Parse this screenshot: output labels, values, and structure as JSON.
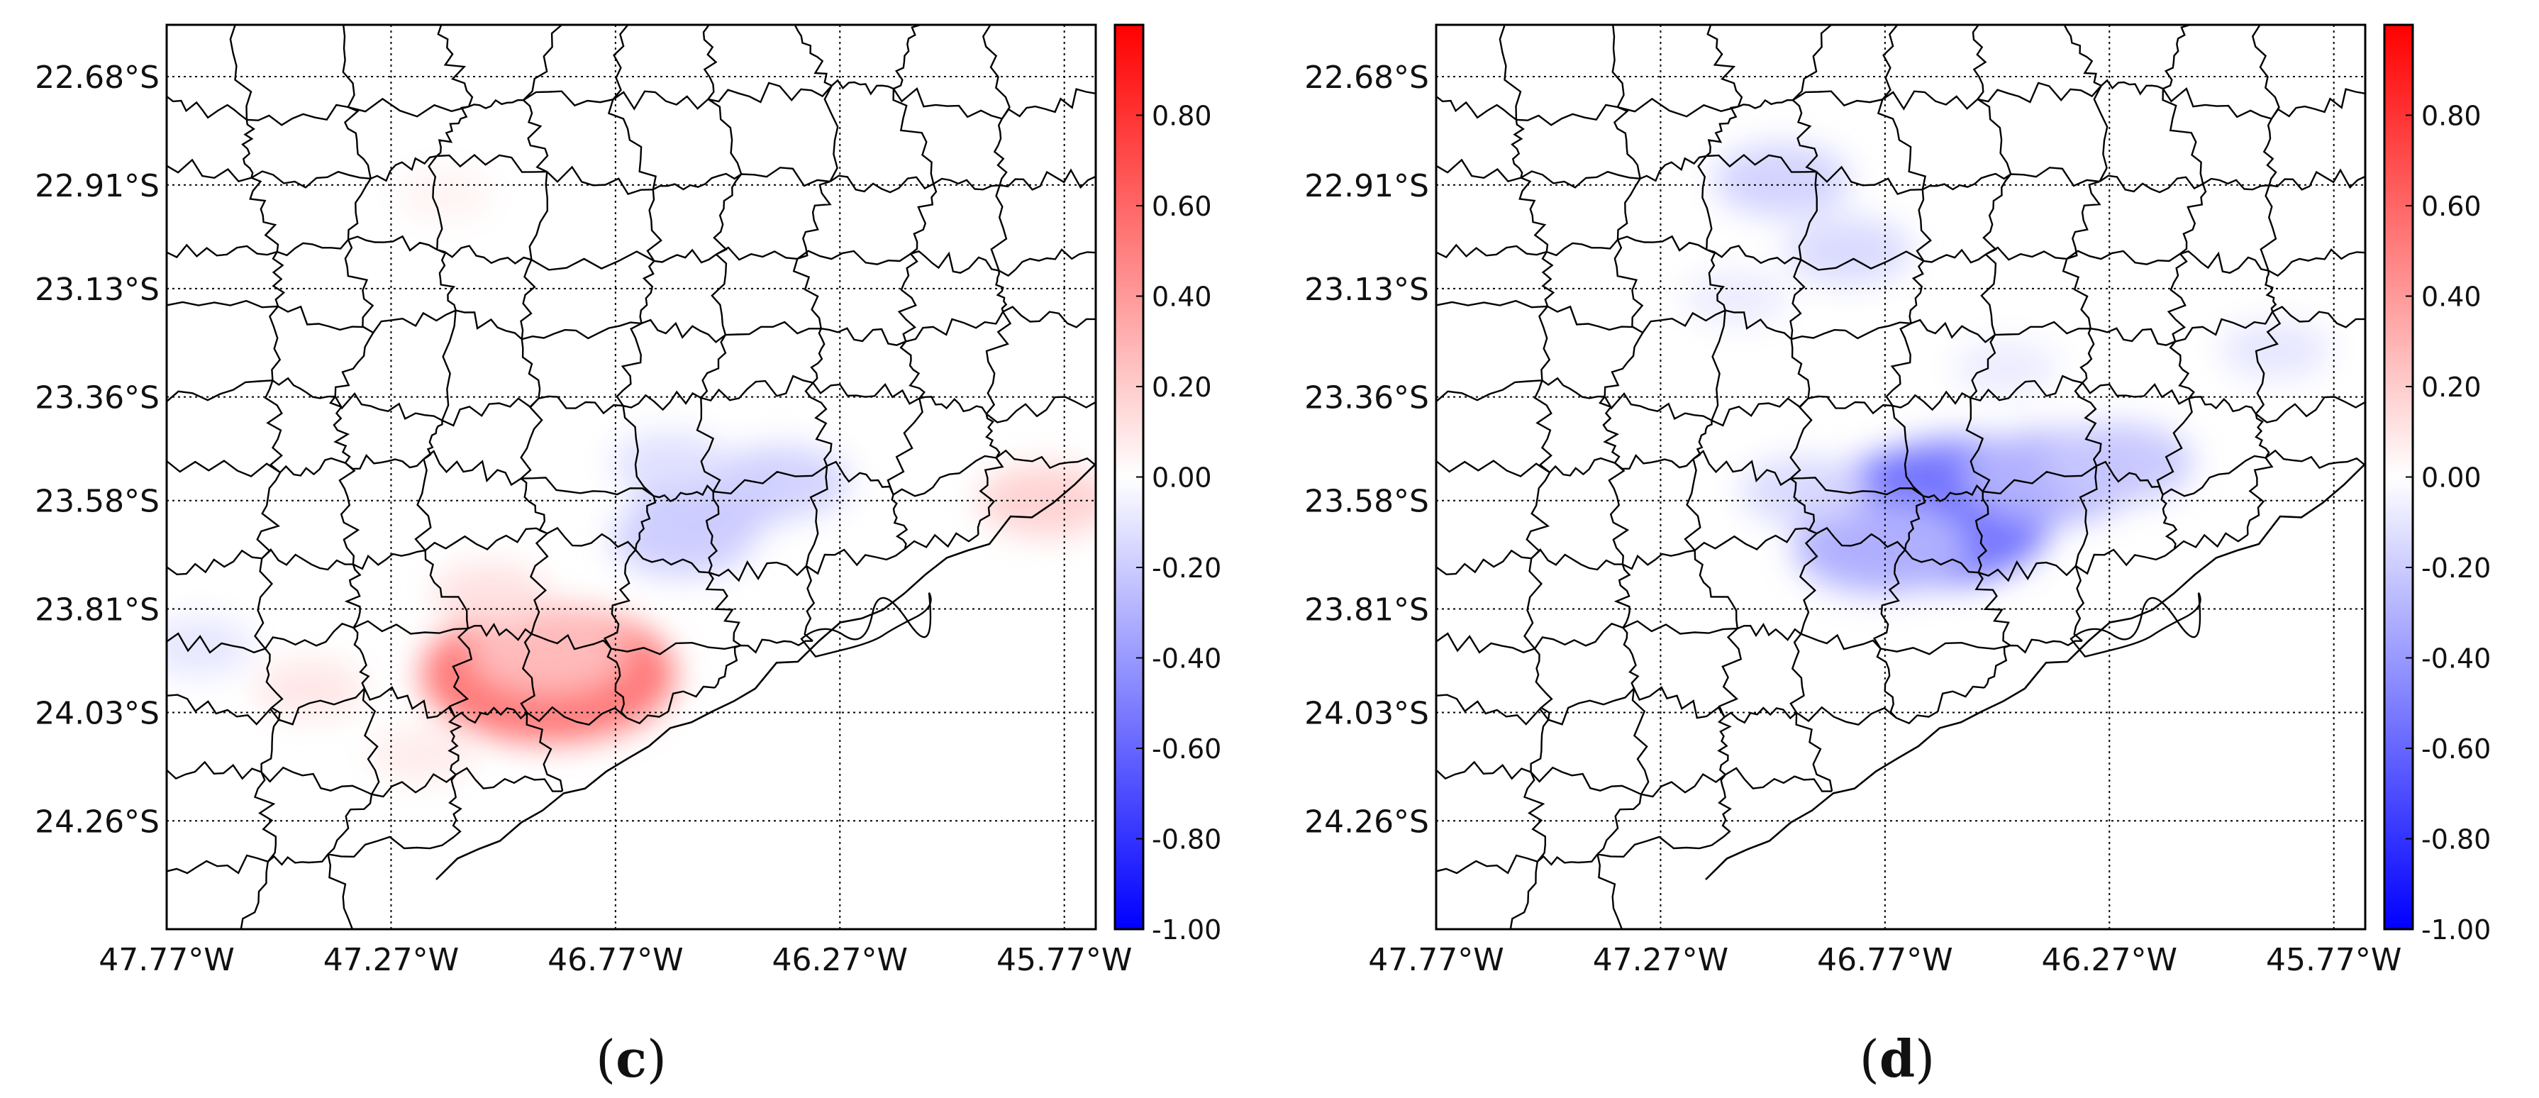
{
  "panels": [
    {
      "id": "c",
      "caption_open": "(",
      "caption_letter": "c",
      "caption_close": ")",
      "blobs": [
        {
          "lon": -46.55,
          "lat": -23.57,
          "v": -0.24
        },
        {
          "lon": -46.4,
          "lat": -23.54,
          "v": -0.18
        },
        {
          "lon": -46.62,
          "lat": -23.66,
          "v": -0.2
        },
        {
          "lon": -46.65,
          "lat": -23.5,
          "v": -0.12
        },
        {
          "lon": -45.81,
          "lat": -23.58,
          "v": 0.18
        },
        {
          "lon": -46.92,
          "lat": -23.95,
          "v": 0.55
        },
        {
          "lon": -46.92,
          "lat": -23.9,
          "v": 0.25
        },
        {
          "lon": -47.05,
          "lat": -23.78,
          "v": 0.12
        },
        {
          "lon": -47.45,
          "lat": -23.98,
          "v": 0.1
        },
        {
          "lon": -47.7,
          "lat": -23.89,
          "v": -0.1
        },
        {
          "lon": -47.15,
          "lat": -22.93,
          "v": 0.05
        },
        {
          "lon": -47.2,
          "lat": -24.12,
          "v": 0.08
        }
      ]
    },
    {
      "id": "d",
      "caption_open": "(",
      "caption_letter": "d",
      "caption_close": ")",
      "blobs": [
        {
          "lon": -46.6,
          "lat": -23.56,
          "v": -0.4
        },
        {
          "lon": -46.68,
          "lat": -23.62,
          "v": -0.55
        },
        {
          "lon": -46.4,
          "lat": -23.53,
          "v": -0.3
        },
        {
          "lon": -46.25,
          "lat": -23.5,
          "v": -0.22
        },
        {
          "lon": -46.78,
          "lat": -23.68,
          "v": -0.3
        },
        {
          "lon": -46.95,
          "lat": -23.56,
          "v": -0.15
        },
        {
          "lon": -47.0,
          "lat": -22.9,
          "v": -0.18
        },
        {
          "lon": -46.85,
          "lat": -23.05,
          "v": -0.15
        },
        {
          "lon": -46.5,
          "lat": -23.3,
          "v": -0.08
        },
        {
          "lon": -45.9,
          "lat": -23.26,
          "v": -0.1
        },
        {
          "lon": -47.1,
          "lat": -23.15,
          "v": -0.08
        }
      ]
    }
  ],
  "map": {
    "lon_range": [
      -47.77,
      -45.7
    ],
    "lat_range": [
      -22.57,
      -24.49
    ],
    "lon_ticks": [
      {
        "v": -47.77,
        "label": "47.77°W"
      },
      {
        "v": -47.27,
        "label": "47.27°W"
      },
      {
        "v": -46.77,
        "label": "46.77°W"
      },
      {
        "v": -46.27,
        "label": "46.27°W"
      },
      {
        "v": -45.77,
        "label": "45.77°W"
      }
    ],
    "lat_ticks": [
      {
        "v": -22.68,
        "label": "22.68°S"
      },
      {
        "v": -22.91,
        "label": "22.91°S"
      },
      {
        "v": -23.13,
        "label": "23.13°S"
      },
      {
        "v": -23.36,
        "label": "23.36°S"
      },
      {
        "v": -23.58,
        "label": "23.58°S"
      },
      {
        "v": -23.81,
        "label": "23.81°S"
      },
      {
        "v": -24.03,
        "label": "24.03°S"
      },
      {
        "v": -24.26,
        "label": "24.26°S"
      }
    ],
    "grid": "dotted",
    "colormap": "bwr"
  },
  "colorbar": {
    "range": [
      -1.0,
      1.0
    ],
    "ticks": [
      {
        "v": 0.8,
        "label": "0.80"
      },
      {
        "v": 0.6,
        "label": "0.60"
      },
      {
        "v": 0.4,
        "label": "0.40"
      },
      {
        "v": 0.2,
        "label": "0.20"
      },
      {
        "v": 0.0,
        "label": "0.00"
      },
      {
        "v": -0.2,
        "label": "-0.20"
      },
      {
        "v": -0.4,
        "label": "-0.40"
      },
      {
        "v": -0.6,
        "label": "-0.60"
      },
      {
        "v": -0.8,
        "label": "-0.80"
      },
      {
        "v": -1.0,
        "label": "-1.00"
      }
    ],
    "colors": {
      "low": "#0000ff",
      "mid": "#ffffff",
      "high": "#ff0000"
    }
  },
  "border_color": "#000000"
}
